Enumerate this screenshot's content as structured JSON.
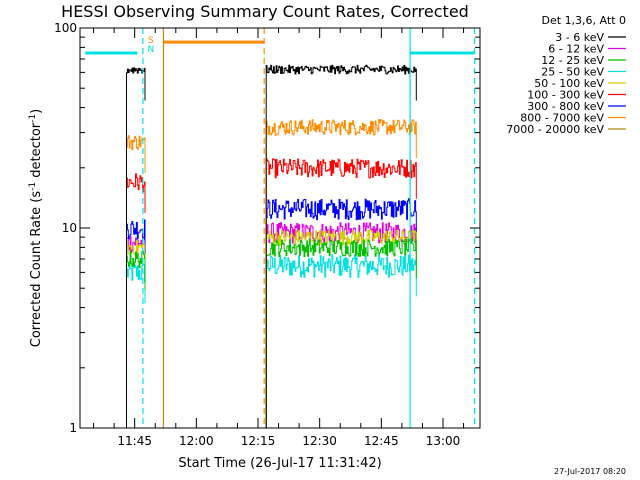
{
  "chart_data": {
    "type": "line",
    "title": "HESSI Observing Summary Count Rates, Corrected",
    "xlabel": "Start Time (26-Jul-17 11:31:42)",
    "ylabel_main": "Corrected Count Rate (s",
    "ylabel_sup1": "-1",
    "ylabel_mid": " detector",
    "ylabel_sup2": "-1",
    "ylabel_end": ")",
    "footer": "27-Jul-2017 08:20",
    "x_scale": "time",
    "xlim": [
      "11:31:42",
      "13:09:00"
    ],
    "y_scale": "log",
    "ylim": [
      1,
      100
    ],
    "x_ticks": [
      "11:45",
      "12:00",
      "12:15",
      "12:30",
      "12:45",
      "13:00"
    ],
    "y_ticks": [
      "1",
      "10",
      "100"
    ],
    "grid": false,
    "legend": {
      "position": "right",
      "header": "Det 1,3,6, Att 0",
      "entries": [
        {
          "label": "3 - 6 keV",
          "color": "#000000"
        },
        {
          "label": "6 - 12 keV",
          "color": "#e000e0"
        },
        {
          "label": "12 - 25 keV",
          "color": "#00c000"
        },
        {
          "label": "25 - 50 keV",
          "color": "#00e0e0"
        },
        {
          "label": "50 - 100 keV",
          "color": "#d0d000"
        },
        {
          "label": "100 - 300 keV",
          "color": "#ff0000"
        },
        {
          "label": "300 - 800 keV",
          "color": "#0000ff"
        },
        {
          "label": "800 - 7000 keV",
          "color": "#ff8c00"
        },
        {
          "label": "7000 - 20000 keV",
          "color": "#b8860b"
        }
      ]
    },
    "segments": [
      {
        "start": "11:43:00",
        "end": "11:47:30"
      },
      {
        "start": "12:17:00",
        "end": "12:53:30"
      }
    ],
    "series": [
      {
        "name": "3 - 6 keV",
        "color": "#000000",
        "levels": [
          62,
          62
        ]
      },
      {
        "name": "800 - 7000 keV",
        "color": "#ff8c00",
        "levels": [
          27,
          32
        ]
      },
      {
        "name": "100 - 300 keV",
        "color": "#ff0000",
        "levels": [
          17,
          20
        ]
      },
      {
        "name": "300 - 800 keV",
        "color": "#0000ff",
        "levels": [
          10,
          12.5
        ]
      },
      {
        "name": "6 - 12 keV",
        "color": "#e000e0",
        "levels": [
          8.5,
          9.5
        ]
      },
      {
        "name": "50 - 100 keV",
        "color": "#d0d000",
        "levels": [
          8,
          9
        ]
      },
      {
        "name": "12 - 25 keV",
        "color": "#00c000",
        "levels": [
          7,
          8
        ]
      },
      {
        "name": "25 - 50 keV",
        "color": "#00e0e0",
        "levels": [
          6,
          6.5
        ]
      }
    ],
    "annotations": {
      "flags": [
        {
          "label": "S",
          "color": "#ff8c00"
        },
        {
          "label": "N",
          "color": "#00e0e0"
        }
      ],
      "markers": [
        {
          "color": "#00e0e0",
          "style": "solid",
          "time": "11:33:00",
          "time_end": "11:45:40",
          "y": 75
        },
        {
          "color": "#ff8c00",
          "style": "solid",
          "time": "11:52:00",
          "time_end": "12:16:30",
          "y": 85
        },
        {
          "color": "#00e0e0",
          "style": "solid",
          "time": "12:52:00",
          "time_end": "13:07:40",
          "y": 75
        },
        {
          "color": "#00e0e0",
          "style": "dashed",
          "time": "11:47:00"
        },
        {
          "color": "#b8860b",
          "style": "solid",
          "time": "11:52:00"
        },
        {
          "color": "#ff8c00",
          "style": "dashed",
          "time": "12:16:30"
        },
        {
          "color": "#00e0e0",
          "style": "solid",
          "time": "12:52:00"
        },
        {
          "color": "#00e0e0",
          "style": "dashed",
          "time": "13:07:40"
        }
      ]
    }
  }
}
